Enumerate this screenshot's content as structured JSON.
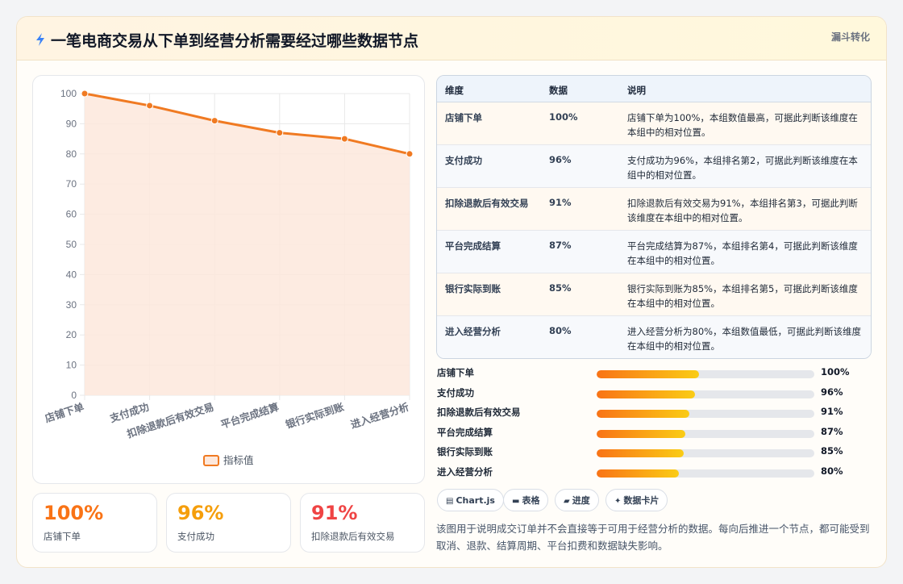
{
  "header": {
    "title": "一笔电商交易从下单到经营分析需要经过哪些数据节点",
    "tag": "漏斗转化",
    "icon": "lightning-icon"
  },
  "chart_data": {
    "type": "area",
    "categories": [
      "店铺下单",
      "支付成功",
      "扣除退款后有效交易",
      "平台完成结算",
      "银行实际到账",
      "进入经营分析"
    ],
    "series": [
      {
        "name": "指标值",
        "values": [
          100,
          96,
          91,
          87,
          85,
          80
        ]
      }
    ],
    "ylim": [
      0,
      100
    ],
    "yticks": [
      0,
      10,
      20,
      30,
      40,
      50,
      60,
      70,
      80,
      90,
      100
    ],
    "grid": true,
    "legend": "bottom",
    "colors": {
      "line": "#f07a22",
      "fill": "#fde8dc"
    }
  },
  "kpis": [
    {
      "value": "100%",
      "label": "店铺下单",
      "color": "#f97316"
    },
    {
      "value": "96%",
      "label": "支付成功",
      "color": "#f59e0b"
    },
    {
      "value": "91%",
      "label": "扣除退款后有效交易",
      "color": "#ef4444"
    }
  ],
  "table": {
    "headers": [
      "维度",
      "数据",
      "说明"
    ],
    "rows": [
      {
        "dim": "店铺下单",
        "value": "100%",
        "desc": "店铺下单为100%，本组数值最高，可据此判断该维度在本组中的相对位置。"
      },
      {
        "dim": "支付成功",
        "value": "96%",
        "desc": "支付成功为96%，本组排名第2，可据此判断该维度在本组中的相对位置。"
      },
      {
        "dim": "扣除退款后有效交易",
        "value": "91%",
        "desc": "扣除退款后有效交易为91%，本组排名第3，可据此判断该维度在本组中的相对位置。"
      },
      {
        "dim": "平台完成结算",
        "value": "87%",
        "desc": "平台完成结算为87%，本组排名第4，可据此判断该维度在本组中的相对位置。"
      },
      {
        "dim": "银行实际到账",
        "value": "85%",
        "desc": "银行实际到账为85%，本组排名第5，可据此判断该维度在本组中的相对位置。"
      },
      {
        "dim": "进入经营分析",
        "value": "80%",
        "desc": "进入经营分析为80%，本组数值最低，可据此判断该维度在本组中的相对位置。"
      }
    ]
  },
  "progress": [
    {
      "label": "店铺下单",
      "value": 100,
      "text": "100%"
    },
    {
      "label": "支付成功",
      "value": 96,
      "text": "96%"
    },
    {
      "label": "扣除退款后有效交易",
      "value": 91,
      "text": "91%"
    },
    {
      "label": "平台完成结算",
      "value": 87,
      "text": "87%"
    },
    {
      "label": "银行实际到账",
      "value": 85,
      "text": "85%"
    },
    {
      "label": "进入经营分析",
      "value": 80,
      "text": "80%"
    }
  ],
  "chips": [
    {
      "icon": "chart-icon",
      "label": "Chart.js"
    },
    {
      "icon": "table-icon",
      "label": "表格"
    },
    {
      "icon": "progress-icon",
      "label": "进度"
    },
    {
      "icon": "sparkle-icon",
      "label": "数据卡片"
    }
  ],
  "note": "该图用于说明成交订单并不会直接等于可用于经营分析的数据。每向后推进一个节点，都可能受到取消、退款、结算周期、平台扣费和数据缺失影响。"
}
